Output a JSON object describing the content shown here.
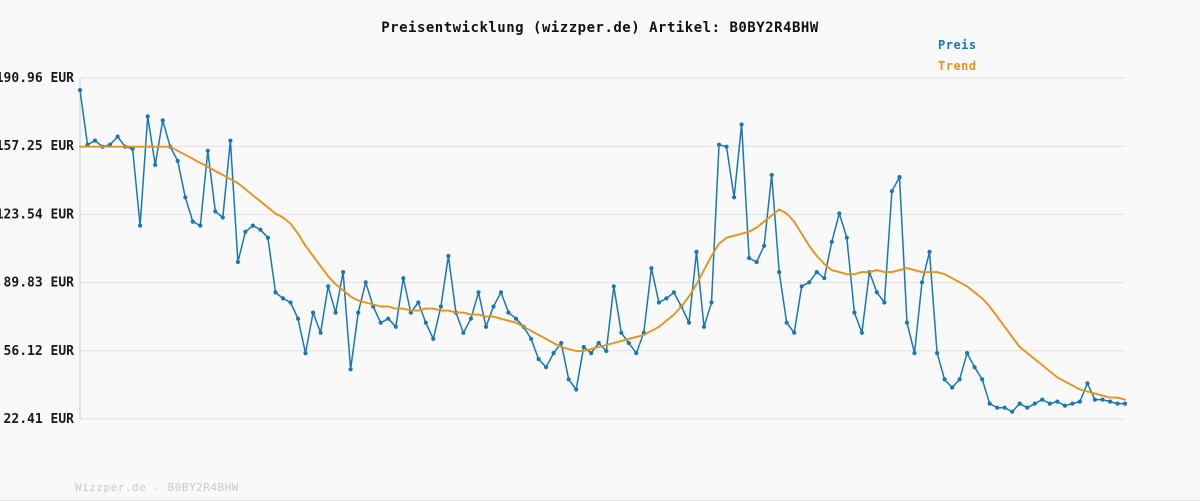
{
  "title": "Preisentwicklung (wizzper.de) Artikel: B0BY2R4BHW",
  "watermark": "Wizzper.de - B0BY2R4BHW",
  "legend": [
    {
      "label": "Preis",
      "color": "#1878b4"
    },
    {
      "label": "Trend",
      "color": "#e8921e"
    }
  ],
  "colors": {
    "background": "#f9f9f9",
    "gridline": "#e1e1e1",
    "axis_spine": "#cccccc",
    "tick_label": "#1a1a1a",
    "price_line": "#1878b4",
    "trend_line": "#e8921e"
  },
  "chart_data": {
    "type": "line",
    "title": "Preisentwicklung (wizzper.de) Artikel: B0BY2R4BHW",
    "xlabel": "",
    "ylabel": "EUR",
    "grid": true,
    "legend_position": "top-right",
    "ylim": [
      22.41,
      190.96
    ],
    "y_ticks": [
      "190.96 EUR",
      "157.25 EUR",
      "123.54 EUR",
      "89.83 EUR",
      "56.12 EUR",
      "22.41 EUR"
    ],
    "y_tick_values": [
      190.96,
      157.25,
      123.54,
      89.83,
      56.12,
      22.41
    ],
    "series": [
      {
        "name": "Preis",
        "color": "#1878b4",
        "marker": true,
        "values": [
          185,
          158,
          160,
          157,
          158,
          162,
          157,
          156,
          118,
          172,
          148,
          170,
          157,
          150,
          132,
          120,
          118,
          155,
          125,
          122,
          160,
          100,
          115,
          118,
          116,
          112,
          85,
          82,
          80,
          72,
          55,
          75,
          65,
          88,
          75,
          95,
          47,
          75,
          90,
          78,
          70,
          72,
          68,
          92,
          75,
          80,
          70,
          62,
          78,
          103,
          75,
          65,
          72,
          85,
          68,
          78,
          85,
          75,
          72,
          68,
          62,
          52,
          48,
          55,
          60,
          42,
          37,
          58,
          55,
          60,
          56,
          88,
          65,
          60,
          55,
          65,
          97,
          80,
          82,
          85,
          78,
          70,
          105,
          68,
          80,
          158,
          157,
          132,
          168,
          102,
          100,
          108,
          143,
          95,
          70,
          65,
          88,
          90,
          95,
          92,
          110,
          124,
          112,
          75,
          65,
          95,
          85,
          80,
          135,
          142,
          70,
          55,
          90,
          105,
          55,
          42,
          38,
          42,
          55,
          48,
          42,
          30,
          28,
          28,
          26,
          30,
          28,
          30,
          32,
          30,
          31,
          29,
          30,
          31,
          40,
          32,
          32,
          31,
          30,
          30
        ]
      },
      {
        "name": "Trend",
        "color": "#e8921e",
        "marker": false,
        "values": [
          157,
          157,
          157,
          157,
          157,
          157,
          157,
          157,
          157,
          157,
          157,
          157,
          157,
          155,
          153,
          151,
          149,
          147,
          145,
          143,
          141,
          139,
          136,
          133,
          130,
          127,
          124,
          122,
          119,
          114,
          108,
          103,
          98,
          93,
          89,
          86,
          83,
          81,
          80,
          79,
          78,
          78,
          77,
          77,
          76,
          76,
          77,
          77,
          76,
          76,
          75,
          75,
          74,
          74,
          73,
          73,
          72,
          71,
          70,
          68,
          66,
          64,
          62,
          60,
          58,
          57,
          56,
          56,
          57,
          58,
          59,
          60,
          61,
          62,
          63,
          64,
          66,
          68,
          71,
          74,
          78,
          83,
          89,
          96,
          103,
          109,
          112,
          113,
          114,
          115,
          117,
          120,
          123,
          126,
          124,
          120,
          114,
          108,
          103,
          99,
          96,
          95,
          94,
          94,
          95,
          95,
          96,
          95,
          95,
          96,
          97,
          96,
          95,
          95,
          95,
          94,
          92,
          90,
          88,
          85,
          82,
          78,
          73,
          68,
          63,
          58,
          55,
          52,
          49,
          46,
          43,
          41,
          39,
          37,
          36,
          35,
          34,
          33,
          33,
          32
        ]
      }
    ]
  }
}
